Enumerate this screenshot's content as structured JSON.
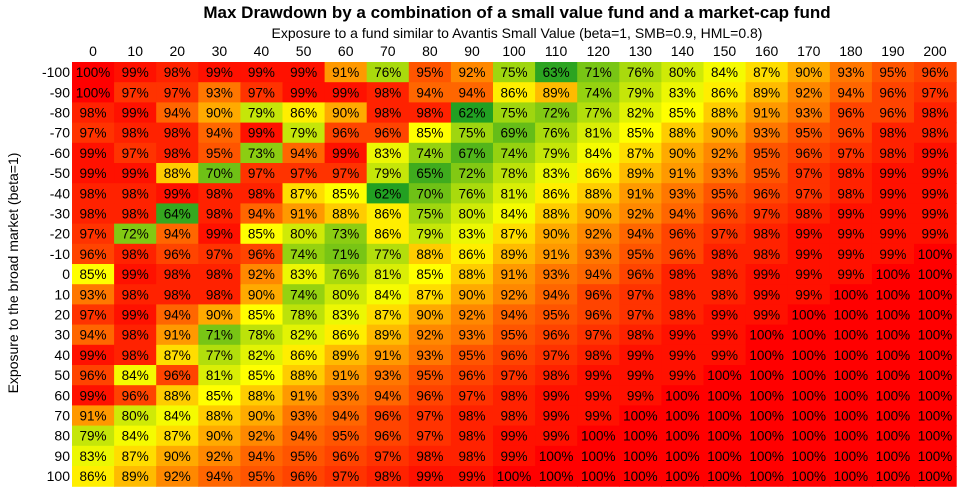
{
  "chart_data": {
    "type": "heatmap",
    "title": "Max Drawdown by a combination of a small value fund and a market-cap fund",
    "xlabel": "Exposure to a fund similar to Avantis Small Value (beta=1, SMB=0.9, HML=0.8)",
    "ylabel": "Exposure to the broad market (beta=1)",
    "x": [
      "0",
      "10",
      "20",
      "30",
      "40",
      "50",
      "60",
      "70",
      "80",
      "90",
      "100",
      "110",
      "120",
      "130",
      "140",
      "150",
      "160",
      "170",
      "180",
      "190",
      "200"
    ],
    "y": [
      "-100",
      "-90",
      "-80",
      "-70",
      "-60",
      "-50",
      "-40",
      "-30",
      "-20",
      "-10",
      "0",
      "10",
      "20",
      "30",
      "40",
      "50",
      "60",
      "70",
      "80",
      "90",
      "100"
    ],
    "values": [
      [
        100,
        99,
        98,
        99,
        99,
        99,
        91,
        76,
        95,
        92,
        75,
        63,
        71,
        76,
        80,
        84,
        87,
        90,
        93,
        95,
        96
      ],
      [
        100,
        97,
        97,
        93,
        97,
        99,
        99,
        98,
        94,
        94,
        86,
        89,
        74,
        79,
        83,
        86,
        89,
        92,
        94,
        96,
        97
      ],
      [
        98,
        99,
        94,
        90,
        79,
        86,
        90,
        98,
        98,
        62,
        75,
        72,
        77,
        82,
        85,
        88,
        91,
        93,
        96,
        96,
        98
      ],
      [
        97,
        98,
        98,
        94,
        99,
        79,
        96,
        96,
        85,
        75,
        69,
        76,
        81,
        85,
        88,
        90,
        93,
        95,
        96,
        98,
        98
      ],
      [
        99,
        97,
        98,
        95,
        73,
        94,
        99,
        83,
        74,
        67,
        74,
        79,
        84,
        87,
        90,
        92,
        95,
        96,
        97,
        98,
        99
      ],
      [
        99,
        99,
        88,
        70,
        97,
        97,
        97,
        79,
        65,
        72,
        78,
        83,
        86,
        89,
        91,
        93,
        95,
        97,
        98,
        99,
        99
      ],
      [
        98,
        98,
        99,
        98,
        98,
        87,
        85,
        62,
        70,
        76,
        81,
        86,
        88,
        91,
        93,
        95,
        96,
        97,
        98,
        99,
        99
      ],
      [
        98,
        98,
        64,
        98,
        94,
        91,
        88,
        86,
        75,
        80,
        84,
        88,
        90,
        92,
        94,
        96,
        97,
        98,
        99,
        99,
        99
      ],
      [
        97,
        72,
        94,
        99,
        85,
        80,
        73,
        86,
        79,
        83,
        87,
        90,
        92,
        94,
        96,
        97,
        98,
        99,
        99,
        99,
        99
      ],
      [
        96,
        98,
        96,
        97,
        96,
        74,
        71,
        77,
        88,
        86,
        89,
        91,
        93,
        95,
        96,
        98,
        98,
        99,
        99,
        99,
        100
      ],
      [
        85,
        99,
        98,
        98,
        92,
        83,
        76,
        81,
        85,
        88,
        91,
        93,
        94,
        96,
        98,
        98,
        99,
        99,
        99,
        100,
        100
      ],
      [
        93,
        98,
        98,
        98,
        90,
        74,
        80,
        84,
        87,
        90,
        92,
        94,
        96,
        97,
        98,
        98,
        99,
        99,
        100,
        100,
        100
      ],
      [
        97,
        99,
        94,
        90,
        85,
        78,
        83,
        87,
        90,
        92,
        94,
        95,
        96,
        97,
        98,
        99,
        99,
        100,
        100,
        100,
        100
      ],
      [
        94,
        98,
        91,
        71,
        78,
        82,
        86,
        89,
        92,
        93,
        95,
        96,
        97,
        98,
        99,
        99,
        100,
        100,
        100,
        100,
        100
      ],
      [
        99,
        98,
        87,
        77,
        82,
        86,
        89,
        91,
        93,
        95,
        96,
        97,
        98,
        99,
        99,
        99,
        100,
        100,
        100,
        100,
        100
      ],
      [
        96,
        84,
        96,
        81,
        85,
        88,
        91,
        93,
        95,
        96,
        97,
        98,
        99,
        99,
        99,
        100,
        100,
        100,
        100,
        100,
        100
      ],
      [
        99,
        96,
        88,
        85,
        88,
        91,
        93,
        94,
        96,
        97,
        98,
        99,
        99,
        99,
        100,
        100,
        100,
        100,
        100,
        100,
        100
      ],
      [
        91,
        80,
        84,
        88,
        90,
        93,
        94,
        96,
        97,
        98,
        98,
        99,
        99,
        100,
        100,
        100,
        100,
        100,
        100,
        100,
        100
      ],
      [
        79,
        84,
        87,
        90,
        92,
        94,
        95,
        96,
        97,
        98,
        99,
        99,
        100,
        100,
        100,
        100,
        100,
        100,
        100,
        100,
        100
      ],
      [
        83,
        87,
        90,
        92,
        94,
        95,
        96,
        97,
        98,
        98,
        99,
        100,
        100,
        100,
        100,
        100,
        100,
        100,
        100,
        100,
        100
      ],
      [
        86,
        89,
        92,
        94,
        95,
        96,
        97,
        98,
        99,
        99,
        100,
        100,
        100,
        100,
        100,
        100,
        100,
        100,
        100,
        100,
        100
      ]
    ],
    "value_suffix": "%",
    "colorscale": {
      "min": 62,
      "mid": 85,
      "max": 100,
      "low_color": "#22a022",
      "mid_color": "#ffff00",
      "high_color": "#ff0000"
    }
  }
}
